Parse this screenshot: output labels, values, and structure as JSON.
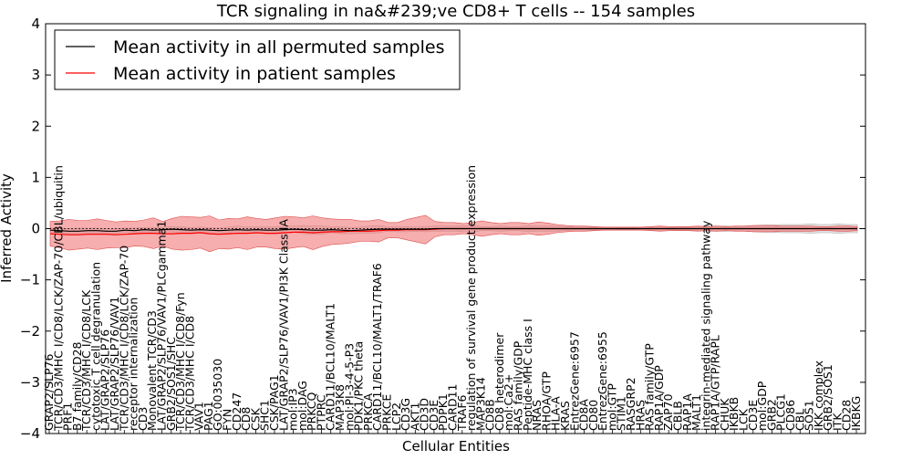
{
  "chart_data": {
    "type": "line",
    "title": "TCR signaling in na&#239;ve CD8+ T cells -- 154 samples",
    "xlabel": "Cellular Entities",
    "ylabel": "Inferred Activity",
    "ylim": [
      -4,
      4
    ],
    "yticks": [
      4,
      3,
      2,
      1,
      0,
      -1,
      -2,
      -3,
      -4
    ],
    "ytick_labels": [
      "4",
      "3",
      "2",
      "1",
      "0",
      "−1",
      "−2",
      "−3",
      "−4"
    ],
    "grid": false,
    "legend_position": "top-left",
    "zero_line": 0,
    "series": [
      {
        "name": "Mean activity in all permuted samples",
        "color": "#000000",
        "band_color": "#c8c8c8",
        "mean": [
          -0.03,
          -0.04,
          -0.05,
          -0.05,
          -0.04,
          -0.04,
          -0.05,
          -0.05,
          -0.03,
          -0.04,
          -0.02,
          -0.03,
          -0.02,
          -0.01,
          -0.02,
          -0.03,
          -0.02,
          -0.03,
          -0.04,
          -0.03,
          -0.02,
          -0.03,
          -0.02,
          -0.03,
          -0.03,
          -0.02,
          -0.01,
          -0.02,
          -0.03,
          -0.03,
          -0.02,
          -0.03,
          -0.04,
          -0.03,
          -0.02,
          -0.01,
          -0.01,
          -0.01,
          -0.01,
          -0.01,
          -0.01,
          0.0,
          0.0,
          0.0,
          0.0,
          0.0,
          0.0,
          0.0,
          0.0,
          0.0,
          0.0,
          0.0,
          0.0,
          0.0,
          0.0,
          0.0,
          0.0,
          0.0,
          0.0,
          0.0,
          0.0,
          0.0,
          0.0,
          0.0,
          0.0,
          0.0,
          0.0,
          0.0,
          0.0,
          0.0,
          0.0,
          0.0,
          0.0,
          0.0,
          0.0,
          0.0,
          0.0,
          0.0,
          0.0,
          0.0,
          0.0,
          0.0,
          0.0,
          0.0,
          0.0,
          0.0,
          0.0
        ],
        "spread": [
          0.04,
          0.05,
          0.05,
          0.06,
          0.05,
          0.05,
          0.05,
          0.05,
          0.04,
          0.05,
          0.04,
          0.05,
          0.05,
          0.05,
          0.06,
          0.05,
          0.05,
          0.05,
          0.05,
          0.06,
          0.07,
          0.06,
          0.06,
          0.07,
          0.07,
          0.07,
          0.06,
          0.08,
          0.08,
          0.08,
          0.06,
          0.07,
          0.06,
          0.06,
          0.07,
          0.07,
          0.04,
          0.05,
          0.05,
          0.04,
          0.05,
          0.05,
          0.05,
          0.05,
          0.06,
          0.06,
          0.04,
          0.04,
          0.05,
          0.04,
          0.04,
          0.06,
          0.05,
          0.05,
          0.05,
          0.04,
          0.03,
          0.03,
          0.03,
          0.03,
          0.03,
          0.02,
          0.02,
          0.03,
          0.03,
          0.03,
          0.02,
          0.03,
          0.03,
          0.04,
          0.05,
          0.05,
          0.05,
          0.04,
          0.05,
          0.06,
          0.07,
          0.07,
          0.08,
          0.08,
          0.08,
          0.09,
          0.08,
          0.08,
          0.09,
          0.08,
          0.08
        ]
      },
      {
        "name": "Mean activity in patient samples",
        "color": "#ff0000",
        "band_color": "#f07878",
        "mean": [
          -0.1,
          -0.11,
          -0.12,
          -0.12,
          -0.11,
          -0.11,
          -0.11,
          -0.12,
          -0.11,
          -0.1,
          -0.09,
          -0.09,
          -0.1,
          -0.1,
          -0.09,
          -0.09,
          -0.08,
          -0.1,
          -0.11,
          -0.1,
          -0.09,
          -0.09,
          -0.08,
          -0.09,
          -0.09,
          -0.08,
          -0.07,
          -0.07,
          -0.08,
          -0.07,
          -0.06,
          -0.06,
          -0.05,
          -0.05,
          -0.05,
          -0.04,
          -0.03,
          -0.03,
          -0.02,
          -0.02,
          -0.02,
          -0.01,
          0.0,
          0.0,
          0.0,
          0.0,
          0.0,
          0.0,
          0.0,
          0.0,
          0.0,
          0.0,
          0.0,
          0.0,
          0.0,
          0.0,
          0.0,
          0.0,
          0.0,
          0.0,
          0.0,
          0.0,
          0.0,
          0.0,
          0.0,
          0.0,
          0.0,
          0.0,
          0.0,
          0.0,
          0.0,
          0.0,
          0.0,
          0.0,
          0.0,
          0.0,
          0.0,
          0.0,
          0.0,
          0.0,
          0.0,
          0.0,
          0.0,
          0.0,
          0.0,
          0.0,
          0.0
        ],
        "spread": [
          0.24,
          0.26,
          0.3,
          0.28,
          0.27,
          0.3,
          0.27,
          0.25,
          0.26,
          0.24,
          0.26,
          0.3,
          0.24,
          0.3,
          0.33,
          0.32,
          0.3,
          0.35,
          0.28,
          0.3,
          0.28,
          0.32,
          0.28,
          0.27,
          0.3,
          0.32,
          0.3,
          0.28,
          0.33,
          0.28,
          0.25,
          0.24,
          0.23,
          0.2,
          0.2,
          0.22,
          0.15,
          0.15,
          0.2,
          0.24,
          0.28,
          0.15,
          0.12,
          0.12,
          0.1,
          0.12,
          0.15,
          0.12,
          0.1,
          0.12,
          0.12,
          0.1,
          0.13,
          0.11,
          0.08,
          0.06,
          0.05,
          0.05,
          0.04,
          0.03,
          0.03,
          0.03,
          0.03,
          0.03,
          0.04,
          0.05,
          0.04,
          0.04,
          0.04,
          0.05,
          0.04,
          0.05,
          0.04,
          0.05,
          0.05,
          0.06,
          0.06,
          0.06,
          0.05,
          0.05,
          0.05,
          0.05,
          0.04,
          0.04,
          0.05,
          0.05,
          0.04
        ]
      }
    ],
    "categories": [
      "GRAP2/SLP76",
      "TCR/CD3/MHC I/CD8/LCK/ZAP-70/CBL/ubiquitin",
      "PRF1",
      "B7 family/CD28",
      "TCR/CD3/MHC I/CD8/LCK",
      "cytotoxic T cell degranulation",
      "LAT/GRAP2/SLP76",
      "LAT/GRAP2/SLP76/VAV1",
      "TCR/CD3/MHC I/CD8/LCK/ZAP-70",
      "receptor internalization",
      "CD3",
      "Monovalent TCR/CD3",
      "LAT/GRAP2/SLP76/VAV1/PLCgamma1",
      "GRB2/SOS1/SHC",
      "TCR/CD3/MHC I/CD8/Fyn",
      "TCR/CD3/MHC I/CD8",
      "VAV1",
      "PAG1",
      "GO:0035030",
      "FYN",
      "CD247",
      "CD8",
      "CSK",
      "SHC1",
      "CSK/PAG1",
      "LAT/GRAP2/SLP76/VAV1/PI3K Class IA",
      "mol:IP3",
      "mol:DAG",
      "PRKCQ",
      "PTPRC",
      "CARD11/BCL10/MALT1",
      "MAP3K8",
      "mol:PI-3-4-5-P3",
      "PDK1/PKC theta",
      "PRKCA",
      "CARD11/BCL10/MALT1/TRAF6",
      "PRKCE",
      "LCP2",
      "CD3G",
      "AKT1",
      "CD3D",
      "CD3E",
      "PDPK1",
      "CARD11",
      "TRAF6",
      "regulation of survival gene product expression",
      "MAP3K14",
      "CD8B",
      "CD8 heterodimer",
      "mol:Ca2+",
      "RAS family/GDP",
      "Peptide-MHC class I",
      "NRAS",
      "RHOA/GTP",
      "HLA-A",
      "KRAS",
      "EntrezGene:6957",
      "CD8A",
      "CD80",
      "EntrezGene:6955",
      "mol:GTP",
      "STIM1",
      "RASGRP2",
      "HRAS",
      "RAS family/GTP",
      "RAP1A/GDP",
      "ZAP70",
      "CBLB",
      "RAP1A",
      "MALT1",
      "integrin-mediated signaling pathway",
      "RAP1A/GTP/RAPL",
      "CHUK",
      "IKBKB",
      "LCK",
      "CD3E",
      "mol:GDP",
      "GRB2",
      "PLCG1",
      "CD86",
      "CBL",
      "SOS1",
      "IKK complex",
      "GRB2/SOS1",
      "ITK",
      "CD28",
      "IKBKG"
    ]
  }
}
